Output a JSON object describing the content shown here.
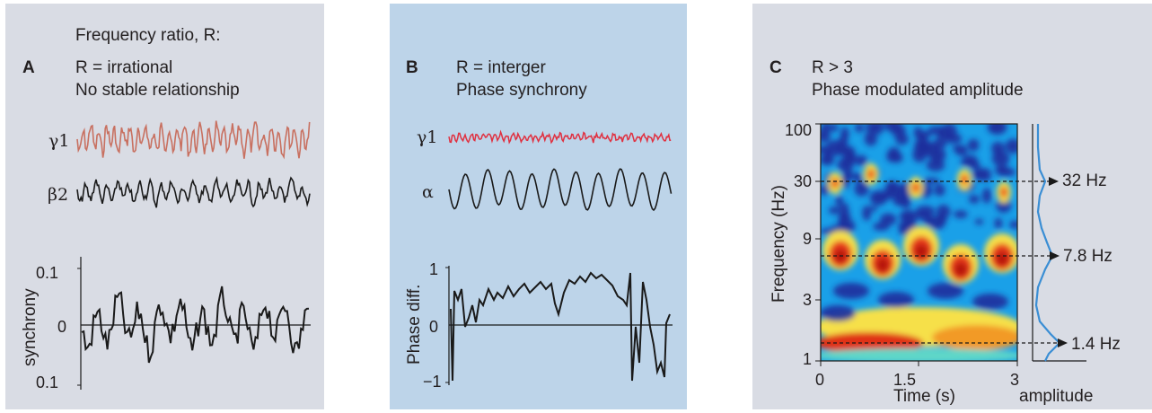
{
  "panel_a": {
    "header": "Frequency ratio, R:",
    "letter": "A",
    "line1": "R = irrational",
    "line2": "No stable relationship",
    "trace1": "γ1",
    "trace2": "β2",
    "ylabel": "synchrony",
    "ticks": [
      "0.1",
      "0",
      "0.1"
    ],
    "colors": {
      "trace1": "#c87060",
      "trace2": "#1a1a1a",
      "bg": "#d9dce4"
    }
  },
  "panel_b": {
    "letter": "B",
    "line1": "R = interger",
    "line2": "Phase synchrony",
    "trace1": "γ1",
    "trace2": "α",
    "ylabel": "Phase diff.",
    "ticks": [
      "1",
      "0",
      "−1"
    ],
    "colors": {
      "trace1": "#e03040",
      "trace2": "#1a1a1a",
      "bg": "#bdd4e9"
    }
  },
  "panel_c": {
    "letter": "C",
    "line1": "R > 3",
    "line2": "Phase modulated amplitude",
    "ylabel": "Frequency (Hz)",
    "xlabel": "Time (s)",
    "yticks": [
      "100",
      "30",
      "9",
      "3",
      "1"
    ],
    "xticks": [
      "0",
      "1.5",
      "3"
    ],
    "amplitude_label": "amplitude",
    "markers": [
      "32 Hz",
      "7.8 Hz",
      "1.4 Hz"
    ],
    "colors": {
      "profile": "#3a8ed4",
      "bg": "#d9dce4",
      "heatmap_base": "#1aa0e8"
    }
  }
}
